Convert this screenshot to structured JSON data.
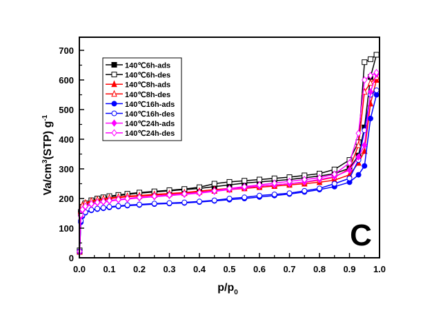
{
  "chart_data": {
    "type": "line",
    "title": "",
    "xlabel": "p/p",
    "xlabel_sub": "0",
    "ylabel": "Va/cm",
    "ylabel_sup": "3",
    "ylabel_mid": "(STP) g",
    "ylabel_sup2": "-1",
    "panel_label": "C",
    "xlim": [
      0,
      1.0
    ],
    "ylim": [
      0,
      700
    ],
    "x_ticks": [
      "0.0",
      "0.1",
      "0.2",
      "0.3",
      "0.4",
      "0.5",
      "0.6",
      "0.7",
      "0.8",
      "0.9",
      "1.0"
    ],
    "y_ticks": [
      "0",
      "100",
      "200",
      "300",
      "400",
      "500",
      "600",
      "700"
    ],
    "legend_position": "top-left",
    "x": [
      0.001,
      0.005,
      0.01,
      0.02,
      0.04,
      0.06,
      0.08,
      0.1,
      0.13,
      0.16,
      0.2,
      0.25,
      0.3,
      0.35,
      0.4,
      0.45,
      0.5,
      0.55,
      0.6,
      0.65,
      0.7,
      0.75,
      0.8,
      0.85,
      0.9,
      0.93,
      0.95,
      0.97,
      0.99
    ],
    "series": [
      {
        "name": "140℃6h-ads",
        "color": "#000000",
        "marker": "square",
        "filled": true,
        "values": [
          20,
          150,
          170,
          182,
          192,
          198,
          202,
          206,
          210,
          214,
          218,
          222,
          226,
          230,
          234,
          240,
          246,
          252,
          256,
          260,
          264,
          270,
          276,
          284,
          302,
          345,
          440,
          610,
          685
        ]
      },
      {
        "name": "140℃6h-des",
        "color": "#000000",
        "marker": "square",
        "filled": false,
        "values": [
          25,
          155,
          172,
          184,
          194,
          200,
          204,
          208,
          212,
          216,
          220,
          224,
          228,
          232,
          238,
          250,
          256,
          260,
          264,
          268,
          272,
          278,
          284,
          298,
          330,
          390,
          660,
          670,
          685
        ]
      },
      {
        "name": "140℃8h-ads",
        "color": "#ff0000",
        "marker": "triangle",
        "filled": true,
        "values": [
          20,
          155,
          175,
          183,
          190,
          194,
          197,
          200,
          203,
          206,
          208,
          212,
          215,
          218,
          222,
          226,
          230,
          234,
          238,
          242,
          246,
          250,
          255,
          262,
          280,
          320,
          360,
          520,
          600
        ]
      },
      {
        "name": "140℃8h-des",
        "color": "#ff0000",
        "marker": "triangle",
        "filled": false,
        "values": [
          22,
          158,
          177,
          185,
          192,
          196,
          199,
          202,
          205,
          208,
          210,
          214,
          217,
          220,
          225,
          230,
          234,
          238,
          242,
          246,
          250,
          255,
          262,
          272,
          300,
          380,
          560,
          590,
          610
        ]
      },
      {
        "name": "140℃16h-ads",
        "color": "#0000ff",
        "marker": "circle",
        "filled": true,
        "values": [
          20,
          120,
          140,
          152,
          160,
          164,
          167,
          170,
          173,
          176,
          178,
          181,
          183,
          185,
          188,
          192,
          196,
          200,
          205,
          210,
          215,
          222,
          230,
          240,
          255,
          280,
          310,
          470,
          550
        ]
      },
      {
        "name": "140℃16h-des",
        "color": "#0000ff",
        "marker": "circle",
        "filled": false,
        "values": [
          22,
          125,
          143,
          154,
          162,
          166,
          169,
          172,
          175,
          178,
          180,
          183,
          185,
          187,
          190,
          194,
          200,
          204,
          210,
          214,
          218,
          226,
          234,
          250,
          268,
          330,
          430,
          550,
          565
        ]
      },
      {
        "name": "140℃24h-ads",
        "color": "#ff00ff",
        "marker": "diamond",
        "filled": true,
        "values": [
          20,
          140,
          160,
          172,
          180,
          185,
          188,
          191,
          195,
          198,
          202,
          206,
          210,
          214,
          218,
          224,
          230,
          236,
          242,
          246,
          250,
          256,
          264,
          274,
          296,
          340,
          380,
          560,
          620
        ]
      },
      {
        "name": "140℃24h-des",
        "color": "#ff00ff",
        "marker": "diamond",
        "filled": false,
        "values": [
          22,
          145,
          163,
          174,
          182,
          187,
          190,
          193,
          197,
          200,
          204,
          208,
          212,
          216,
          220,
          226,
          234,
          240,
          246,
          252,
          258,
          264,
          270,
          282,
          320,
          420,
          600,
          615,
          625
        ]
      }
    ]
  }
}
